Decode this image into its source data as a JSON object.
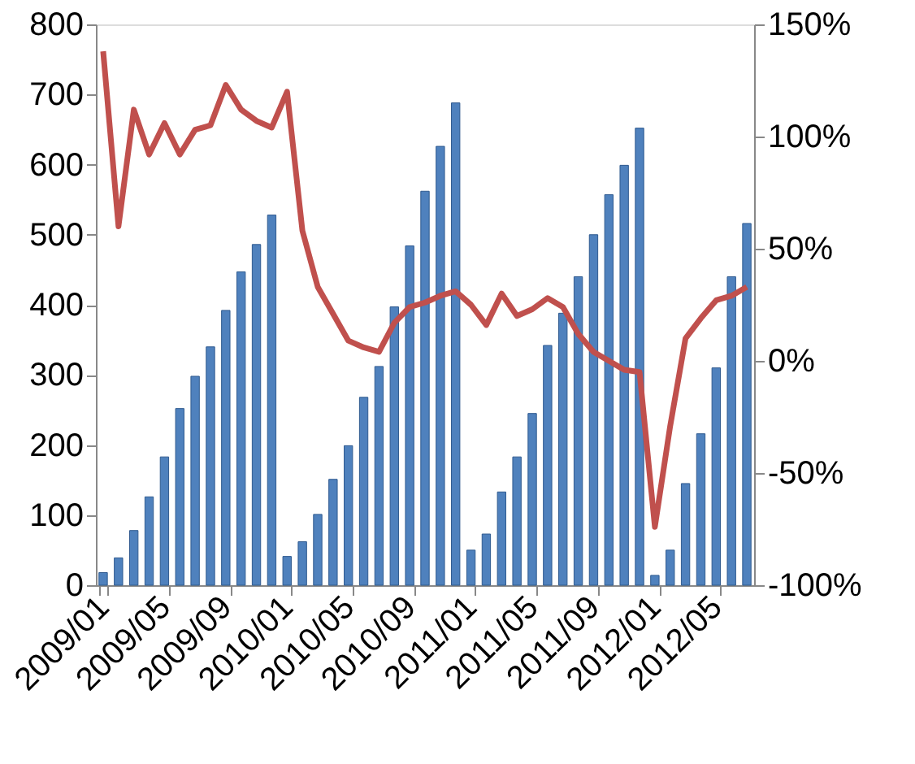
{
  "chart_data": {
    "type": "bar",
    "categories": [
      "2009/01",
      null,
      null,
      null,
      "2009/05",
      null,
      null,
      null,
      "2009/09",
      null,
      null,
      null,
      "2010/01",
      null,
      null,
      null,
      "2010/05",
      null,
      null,
      null,
      "2010/09",
      null,
      null,
      null,
      "2011/01",
      null,
      null,
      null,
      "2011/05",
      null,
      null,
      null,
      "2011/09",
      null,
      null,
      null,
      "2012/01",
      null,
      null,
      null,
      "2012/05",
      null,
      null
    ],
    "series": [
      {
        "color": "#4f81bd",
        "values": [
          18,
          39,
          78,
          126,
          183,
          252,
          298,
          340,
          392,
          447,
          486,
          528,
          41,
          62,
          101,
          151,
          199,
          268,
          312,
          397,
          484,
          562,
          626,
          688,
          50,
          73,
          133,
          183,
          245,
          342,
          388,
          440,
          500,
          557,
          599,
          652,
          14,
          50,
          145,
          216,
          310,
          440,
          516
        ]
      },
      {
        "type": "line",
        "axis": "y2",
        "color": "#c0504d",
        "values": [
          138,
          60,
          112,
          92,
          106,
          92,
          103,
          105,
          123,
          112,
          107,
          104,
          120,
          58,
          33,
          21,
          9,
          6,
          4,
          17,
          24,
          26,
          29,
          31,
          25,
          16,
          30,
          20,
          23,
          28,
          24,
          12,
          4,
          0,
          -4,
          -5,
          -74,
          -29,
          10,
          19,
          27,
          29,
          33
        ]
      }
    ],
    "ylim": [
      0,
      800
    ],
    "yticks": [
      0,
      100,
      200,
      300,
      400,
      500,
      600,
      700,
      800
    ],
    "y2lim": [
      -100,
      150
    ],
    "y2ticks": [
      {
        "value": -100,
        "label": "-100%"
      },
      {
        "value": -50,
        "label": "-50%"
      },
      {
        "value": 0,
        "label": "0%"
      },
      {
        "value": 50,
        "label": "50%"
      },
      {
        "value": 100,
        "label": "100%"
      },
      {
        "value": 150,
        "label": "150%"
      }
    ],
    "grid": false
  }
}
